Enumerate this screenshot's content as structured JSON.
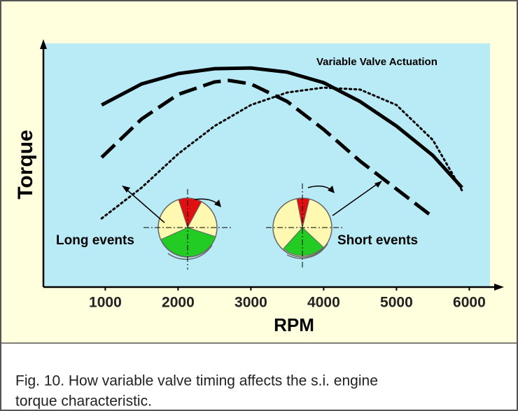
{
  "chart_data": {
    "type": "line",
    "xlabel": "RPM",
    "ylabel": "Torque",
    "caption": [
      "Fig. 10. How variable valve timing affects the s.i. engine",
      "torque characteristic."
    ],
    "xlim": [
      150,
      6400
    ],
    "xticks": [
      1000,
      2000,
      3000,
      4000,
      5000,
      6000
    ],
    "ylim": [
      0,
      100
    ],
    "grid": false,
    "annotations": [
      "Variable Valve Actuation",
      "Long events",
      "Short events"
    ],
    "series": [
      {
        "color": "#000000",
        "style": "solid",
        "x": [
          950,
          1500,
          2000,
          2500,
          3000,
          3500,
          4000,
          4500,
          5000,
          5500,
          5900
        ],
        "values": [
          74.3,
          82.9,
          87.1,
          89.1,
          89.4,
          87.7,
          83.4,
          75.7,
          65.7,
          53.7,
          40.6
        ]
      },
      {
        "color": "#000000",
        "style": "dashed",
        "x": [
          950,
          1500,
          2000,
          2500,
          2700,
          3000,
          3500,
          4000,
          4500,
          5000,
          5500
        ],
        "values": [
          52.9,
          68.6,
          78.6,
          83.7,
          84.3,
          82.9,
          75.7,
          64.3,
          51.4,
          40,
          28.6
        ]
      },
      {
        "color": "#000000",
        "style": "dotted",
        "x": [
          950,
          1500,
          2000,
          2500,
          3000,
          3500,
          4000,
          4500,
          5000,
          5500,
          5900
        ],
        "values": [
          28,
          40.6,
          54.3,
          65.7,
          74.3,
          79.4,
          81.4,
          80.6,
          74.3,
          60,
          39.4
        ]
      }
    ]
  }
}
